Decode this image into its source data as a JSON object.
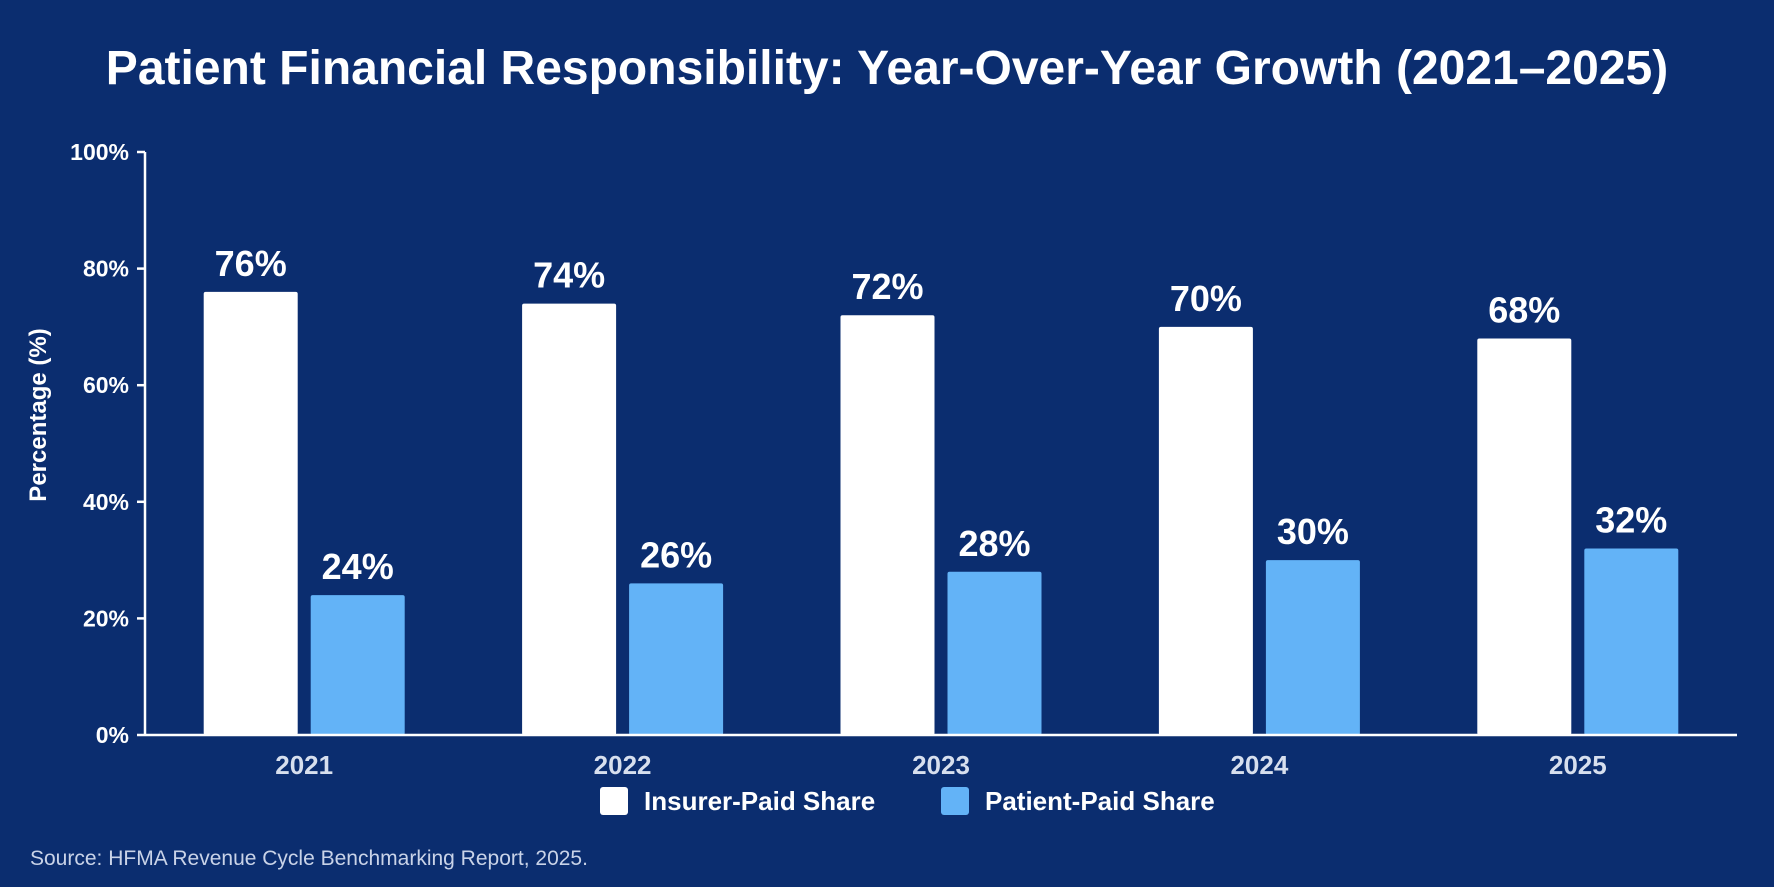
{
  "chart_data": {
    "type": "bar",
    "title": "Patient Financial Responsibility: Year-Over-Year Growth (2021–2025)",
    "ylabel": "Percentage (%)",
    "xlabel": "",
    "ylim": [
      0,
      100
    ],
    "yticks": [
      0,
      20,
      40,
      60,
      80,
      100
    ],
    "ytick_labels": [
      "0%",
      "20%",
      "40%",
      "60%",
      "80%",
      "100%"
    ],
    "categories": [
      "2021",
      "2022",
      "2023",
      "2024",
      "2025"
    ],
    "series": [
      {
        "name": "Insurer-Paid Share",
        "color": "#ffffff",
        "values": [
          76,
          74,
          72,
          70,
          68
        ],
        "labels": [
          "76%",
          "74%",
          "72%",
          "70%",
          "68%"
        ]
      },
      {
        "name": "Patient-Paid Share",
        "color": "#63b3f7",
        "values": [
          24,
          26,
          28,
          30,
          32
        ],
        "labels": [
          "24%",
          "26%",
          "28%",
          "30%",
          "32%"
        ]
      }
    ],
    "legend_position": "bottom-center",
    "grid": false,
    "source": "Source: HFMA Revenue Cycle Benchmarking Report, 2025."
  },
  "colors": {
    "background": "#0b2d6f",
    "axis": "#ffffff"
  }
}
